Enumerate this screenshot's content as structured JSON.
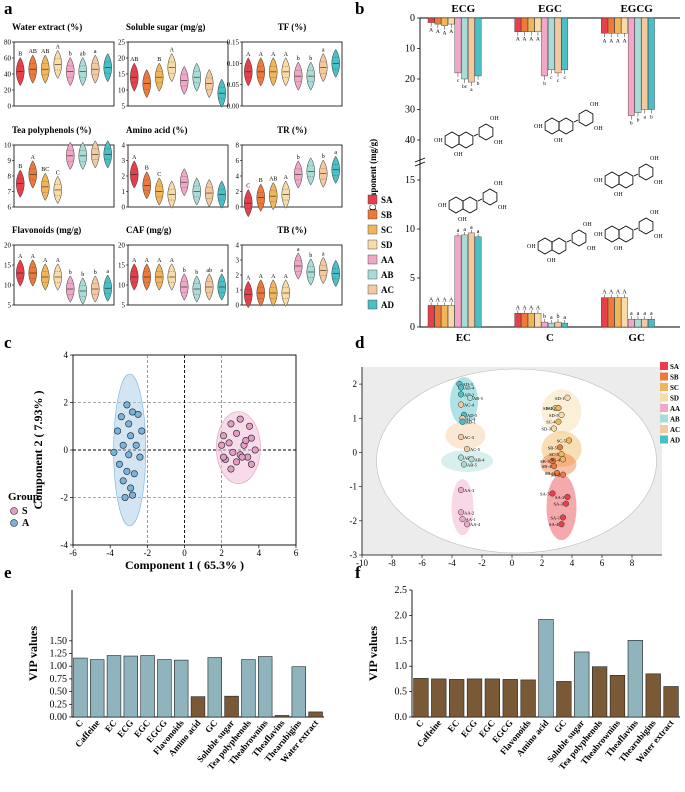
{
  "panel_labels": {
    "a": "a",
    "b": "b",
    "c": "c",
    "d": "d",
    "e": "e",
    "f": "f"
  },
  "colors": {
    "SA": "#e8404a",
    "SB": "#ed7a3a",
    "SC": "#f2b65a",
    "SD": "#f7dba8",
    "AA": "#f0a7c8",
    "AB": "#a9dcd7",
    "AC": "#f3caa0",
    "AD": "#4bbfc6",
    "bar_blue": "#8fb4be",
    "bar_brown": "#7a5a36",
    "S": "#e59cc4",
    "A": "#7ab3dc"
  },
  "groups": [
    "SA",
    "SB",
    "SC",
    "SD",
    "AA",
    "AB",
    "AC",
    "AD"
  ],
  "chart_data": [
    {
      "id": "a",
      "type": "violin",
      "group_order": [
        "SA",
        "SB",
        "SC",
        "SD",
        "AA",
        "AB",
        "AC",
        "AD"
      ],
      "subplots": [
        {
          "title": "Water extract (%)",
          "yticks": [
            "80",
            "60",
            "40",
            "20",
            "0"
          ],
          "ylim": [
            0,
            80
          ],
          "letters": [
            "B",
            "AB",
            "AB",
            "A",
            "b",
            "ab",
            "a",
            ""
          ],
          "medians": [
            43,
            46,
            46,
            52,
            43,
            43,
            46,
            48
          ]
        },
        {
          "title": "Soluble sugar (mg/g)",
          "yticks": [
            "25",
            "20",
            "15",
            "10",
            "5"
          ],
          "ylim": [
            5,
            25
          ],
          "letters": [
            "AB",
            "",
            "B",
            "A",
            "",
            "",
            "",
            ""
          ],
          "medians": [
            14,
            12,
            14,
            17,
            13,
            14,
            12,
            9
          ]
        },
        {
          "title": "TF (%)",
          "yticks": [
            "0.15",
            "0.10",
            "0.05",
            "0.00"
          ],
          "ylim": [
            0,
            0.15
          ],
          "letters": [
            "A",
            "A",
            "A",
            "A",
            "b",
            "b",
            "a",
            ""
          ],
          "medians": [
            0.08,
            0.08,
            0.08,
            0.08,
            0.07,
            0.07,
            0.09,
            0.1
          ]
        },
        {
          "title": "Tea polyphenols (%)",
          "yticks": [
            "10",
            "9",
            "8",
            "7",
            "6"
          ],
          "ylim": [
            6,
            10
          ],
          "letters": [
            "B",
            "A",
            "BC",
            "C",
            "",
            "",
            "",
            ""
          ],
          "medians": [
            7.5,
            8.1,
            7.3,
            7.1,
            9.3,
            9.3,
            9.4,
            9.4
          ]
        },
        {
          "title": "Amino acid (%)",
          "yticks": [
            "4",
            "3",
            "2",
            "1",
            "0"
          ],
          "ylim": [
            0,
            4
          ],
          "letters": [
            "A",
            "B",
            "C",
            "",
            "",
            "",
            "",
            ""
          ],
          "medians": [
            2.1,
            1.4,
            1.0,
            0.8,
            1.6,
            1.0,
            0.9,
            0.8
          ]
        },
        {
          "title": "TR (%)",
          "yticks": [
            "8",
            "6",
            "4",
            "2",
            "0"
          ],
          "ylim": [
            0,
            8
          ],
          "letters": [
            "C",
            "B",
            "AB",
            "A",
            "b",
            "",
            "b",
            "a"
          ],
          "medians": [
            0.5,
            1.2,
            1.4,
            1.6,
            4.2,
            4.6,
            4.3,
            4.8
          ]
        },
        {
          "title": "Flavonoids (mg/g)",
          "yticks": [
            "20",
            "15",
            "10",
            "5"
          ],
          "ylim": [
            5,
            20
          ],
          "letters": [
            "A",
            "A",
            "A",
            "A",
            "b",
            "b",
            "b",
            "a"
          ],
          "medians": [
            13,
            13,
            12,
            12,
            9,
            8.5,
            9,
            9.2
          ]
        },
        {
          "title": "CAF (mg/g)",
          "yticks": [
            "20",
            "15",
            "10",
            "5"
          ],
          "ylim": [
            5,
            20
          ],
          "letters": [
            "A",
            "A",
            "A",
            "A",
            "b",
            "b",
            "ab",
            "a"
          ],
          "medians": [
            12,
            12,
            12,
            12,
            9.5,
            9,
            9.5,
            9.5
          ]
        },
        {
          "title": "TB (%)",
          "yticks": [
            "4",
            "3",
            "2",
            "1",
            "0"
          ],
          "ylim": [
            0,
            4
          ],
          "letters": [
            "A",
            "A",
            "A",
            "A",
            "a",
            "b",
            "a",
            ""
          ],
          "medians": [
            0.7,
            0.8,
            0.8,
            0.8,
            2.6,
            2.2,
            2.3,
            2.1
          ]
        }
      ]
    },
    {
      "id": "b",
      "type": "bar",
      "ylabel": "Component (mg/g)",
      "series_order": [
        "SA",
        "SB",
        "SC",
        "SD",
        "AA",
        "AB",
        "AC",
        "AD"
      ],
      "top": {
        "ticks": [
          "0",
          "10",
          "20",
          "30",
          "40"
        ],
        "range": [
          0,
          40
        ],
        "groups": [
          {
            "name": "ECG",
            "values": [
              1.5,
              2,
              2.5,
              2,
              18,
              20,
              21,
              19
            ],
            "letters": [
              "A",
              "A",
              "A",
              "A",
              "c",
              "bc",
              "a",
              "b"
            ]
          },
          {
            "name": "EGC",
            "values": [
              4.5,
              4.5,
              4.5,
              4.5,
              19,
              17,
              18,
              17
            ],
            "letters": [
              "A",
              "A",
              "A",
              "A",
              "b",
              "c",
              "c",
              "c"
            ]
          },
          {
            "name": "EGCG",
            "values": [
              5,
              5,
              5,
              5,
              32,
              31,
              30,
              30
            ],
            "letters": [
              "A",
              "A",
              "A",
              "A",
              "b",
              "b",
              "a",
              "b"
            ]
          }
        ]
      },
      "bottom": {
        "ticks": [
          "0",
          "5",
          "10",
          "15"
        ],
        "range": [
          0,
          15
        ],
        "groups": [
          {
            "name": "EC",
            "values": [
              2.2,
              2.2,
              2.2,
              2.2,
              9.3,
              9.4,
              9.6,
              9.2
            ],
            "letters": [
              "A",
              "A",
              "A",
              "A",
              "a",
              "a",
              "a",
              "a"
            ]
          },
          {
            "name": "C",
            "values": [
              1.4,
              1.4,
              1.4,
              1.4,
              0.5,
              0.4,
              0.5,
              0.4
            ],
            "letters": [
              "A",
              "A",
              "A",
              "A",
              "b",
              "a",
              "b",
              "a"
            ]
          },
          {
            "name": "GC",
            "values": [
              3.0,
              3.0,
              3.0,
              3.0,
              0.8,
              0.8,
              0.8,
              0.8
            ],
            "letters": [
              "A",
              "A",
              "A",
              "A",
              "a",
              "a",
              "a",
              "a"
            ]
          }
        ]
      }
    },
    {
      "id": "c",
      "type": "scatter",
      "xlabel": "Component 1 ( 65.3% )",
      "ylabel": "Component 2 ( 7.93% )",
      "xlim": [
        -6,
        6
      ],
      "ylim": [
        -4,
        4
      ],
      "xticks": [
        "-6",
        "-4",
        "-2",
        "0",
        "2",
        "4",
        "6"
      ],
      "yticks": [
        "4",
        "2",
        "0",
        "-2",
        "-4"
      ],
      "legend_title": "Group",
      "legend": [
        "S",
        "A"
      ],
      "series": [
        {
          "name": "A",
          "points": [
            [
              -3.1,
              1.9
            ],
            [
              -2.8,
              1.6
            ],
            [
              -3.4,
              1.4
            ],
            [
              -2.5,
              1.5
            ],
            [
              -3.0,
              1.1
            ],
            [
              -3.6,
              0.8
            ],
            [
              -2.3,
              0.8
            ],
            [
              -2.9,
              0.6
            ],
            [
              -3.3,
              0.2
            ],
            [
              -2.6,
              0.2
            ],
            [
              -3.8,
              -0.1
            ],
            [
              -3.0,
              -0.2
            ],
            [
              -2.4,
              -0.3
            ],
            [
              -3.5,
              -0.6
            ],
            [
              -3.1,
              -0.9
            ],
            [
              -2.7,
              -1.0
            ],
            [
              -3.3,
              -1.3
            ],
            [
              -2.9,
              -1.6
            ],
            [
              -3.2,
              -2.0
            ],
            [
              -2.8,
              -1.9
            ]
          ]
        },
        {
          "name": "S",
          "points": [
            [
              3.0,
              1.3
            ],
            [
              2.5,
              1.1
            ],
            [
              3.5,
              1.0
            ],
            [
              2.1,
              0.6
            ],
            [
              2.8,
              0.7
            ],
            [
              3.6,
              0.5
            ],
            [
              2.4,
              0.3
            ],
            [
              3.2,
              0.2
            ],
            [
              2.0,
              0.2
            ],
            [
              3.8,
              0.0
            ],
            [
              2.6,
              -0.1
            ],
            [
              3.0,
              -0.2
            ],
            [
              3.4,
              -0.3
            ],
            [
              2.2,
              -0.4
            ],
            [
              2.8,
              -0.5
            ],
            [
              3.6,
              -0.6
            ],
            [
              3.1,
              -0.3
            ],
            [
              2.5,
              -0.8
            ],
            [
              2.1,
              -0.3
            ],
            [
              3.3,
              0.4
            ]
          ]
        }
      ]
    },
    {
      "id": "d",
      "type": "scatter",
      "xlim": [
        -10,
        10
      ],
      "ylim": [
        -3,
        2.5
      ],
      "xticks": [
        "-10",
        "-8",
        "-6",
        "-4",
        "-2",
        "0",
        "2",
        "4",
        "6",
        "8"
      ],
      "yticks": [
        "2",
        "1",
        "0",
        "-1",
        "-2",
        "-3"
      ],
      "legend": [
        "SA",
        "SB",
        "SC",
        "SD",
        "AA",
        "AB",
        "AC",
        "AD"
      ],
      "labeled_points": [
        {
          "label": "AD-3",
          "g": "AD",
          "x": -3.5,
          "y": 2.0
        },
        {
          "label": "AD-4",
          "g": "AD",
          "x": -3.4,
          "y": 1.9
        },
        {
          "label": "AD-2",
          "g": "AD",
          "x": -3.4,
          "y": 1.7
        },
        {
          "label": "AB-5",
          "g": "AB",
          "x": -2.8,
          "y": 1.6
        },
        {
          "label": "AC-4",
          "g": "AC",
          "x": -3.4,
          "y": 1.4
        },
        {
          "label": "AD-5",
          "g": "AD",
          "x": -3.2,
          "y": 1.1
        },
        {
          "label": "AC-4",
          "g": "AC",
          "x": -3.3,
          "y": 1.0
        },
        {
          "label": "AD-1",
          "g": "AD",
          "x": -3.3,
          "y": 0.9
        },
        {
          "label": "AC-3",
          "g": "AC",
          "x": -3.4,
          "y": 0.45
        },
        {
          "label": "AC-5",
          "g": "AC",
          "x": -3.0,
          "y": 0.1
        },
        {
          "label": "AB-2",
          "g": "AB",
          "x": -3.4,
          "y": -0.15
        },
        {
          "label": "AB-4",
          "g": "AB",
          "x": -2.7,
          "y": -0.2
        },
        {
          "label": "AB-5",
          "g": "AB",
          "x": -3.2,
          "y": -0.35
        },
        {
          "label": "AA-3",
          "g": "AA",
          "x": -3.4,
          "y": -1.1
        },
        {
          "label": "AA-2",
          "g": "AA",
          "x": -3.4,
          "y": -1.75
        },
        {
          "label": "AA-1",
          "g": "AA",
          "x": -3.3,
          "y": -1.95
        },
        {
          "label": "AA-4",
          "g": "AA",
          "x": -3.0,
          "y": -2.1
        },
        {
          "label": "SD-1",
          "g": "SD",
          "x": 3.7,
          "y": 1.6
        },
        {
          "label": "SD-4",
          "g": "SD",
          "x": 2.9,
          "y": 1.3
        },
        {
          "label": "SC-2",
          "g": "SC",
          "x": 3.1,
          "y": 1.3
        },
        {
          "label": "SD-5",
          "g": "SD",
          "x": 3.3,
          "y": 1.1
        },
        {
          "label": "SC-4",
          "g": "SC",
          "x": 3.1,
          "y": 0.9
        },
        {
          "label": "SD-3",
          "g": "SD",
          "x": 2.8,
          "y": 0.7
        },
        {
          "label": "SC-5",
          "g": "SC",
          "x": 3.8,
          "y": 0.35
        },
        {
          "label": "SB-5",
          "g": "SB",
          "x": 3.2,
          "y": 0.15
        },
        {
          "label": "SC-3",
          "g": "SC",
          "x": 3.3,
          "y": -0.05
        },
        {
          "label": "SB-3",
          "g": "SB",
          "x": 2.7,
          "y": -0.25
        },
        {
          "label": "SC-4",
          "g": "SC",
          "x": 3.4,
          "y": -0.2
        },
        {
          "label": "SB-4",
          "g": "SB",
          "x": 2.8,
          "y": -0.4
        },
        {
          "label": "SB-1",
          "g": "SB",
          "x": 3.0,
          "y": -0.6
        },
        {
          "label": "SB-2",
          "g": "SB",
          "x": 3.4,
          "y": -0.65
        },
        {
          "label": "SA-5",
          "g": "SA",
          "x": 2.7,
          "y": -1.2
        },
        {
          "label": "SA-2",
          "g": "SA",
          "x": 3.7,
          "y": -1.3
        },
        {
          "label": "SA-3",
          "g": "SA",
          "x": 3.6,
          "y": -1.5
        },
        {
          "label": "SA-1",
          "g": "SA",
          "x": 3.4,
          "y": -1.9
        },
        {
          "label": "SA-4",
          "g": "SA",
          "x": 3.3,
          "y": -2.1
        }
      ]
    },
    {
      "id": "e",
      "type": "bar",
      "ylabel": "VIP values",
      "ylim": [
        0,
        2.5
      ],
      "yticks": [
        "0.00",
        "0.25",
        "0.50",
        "0.75",
        "1.00",
        "1.25",
        "1.50"
      ],
      "categories": [
        "C",
        "Caffeine",
        "EC",
        "ECG",
        "EGC",
        "EGCG",
        "Flavonoids",
        "Amino acid",
        "GC",
        "Soluble sugar",
        "Tea polyphenols",
        "Theabrownins",
        "Theaflavins",
        "Thearubigins",
        "Water extract"
      ],
      "values": [
        1.16,
        1.13,
        1.21,
        1.2,
        1.21,
        1.13,
        1.12,
        0.4,
        1.17,
        0.41,
        1.13,
        1.19,
        0.03,
        0.99,
        0.1
      ],
      "important": [
        true,
        true,
        true,
        true,
        true,
        true,
        true,
        false,
        true,
        false,
        true,
        true,
        false,
        true,
        false
      ]
    },
    {
      "id": "f",
      "type": "bar",
      "ylabel": "VIP values",
      "ylim": [
        0,
        2.5
      ],
      "yticks": [
        "0.0",
        "0.5",
        "1.0",
        "1.5",
        "2.0",
        "2.5"
      ],
      "categories": [
        "C",
        "Caffeine",
        "EC",
        "ECG",
        "EGC",
        "EGCG",
        "Flavonoids",
        "Amino acid",
        "GC",
        "Soluble sugar",
        "Tea polyphenols",
        "Theabrownins",
        "Theaflavins",
        "Thearubigins",
        "Water extract"
      ],
      "values": [
        0.76,
        0.75,
        0.74,
        0.75,
        0.75,
        0.74,
        0.73,
        1.92,
        0.7,
        1.28,
        0.99,
        0.82,
        1.51,
        0.85,
        0.6
      ],
      "important": [
        false,
        false,
        false,
        false,
        false,
        false,
        false,
        true,
        false,
        true,
        false,
        false,
        true,
        false,
        false
      ]
    }
  ]
}
